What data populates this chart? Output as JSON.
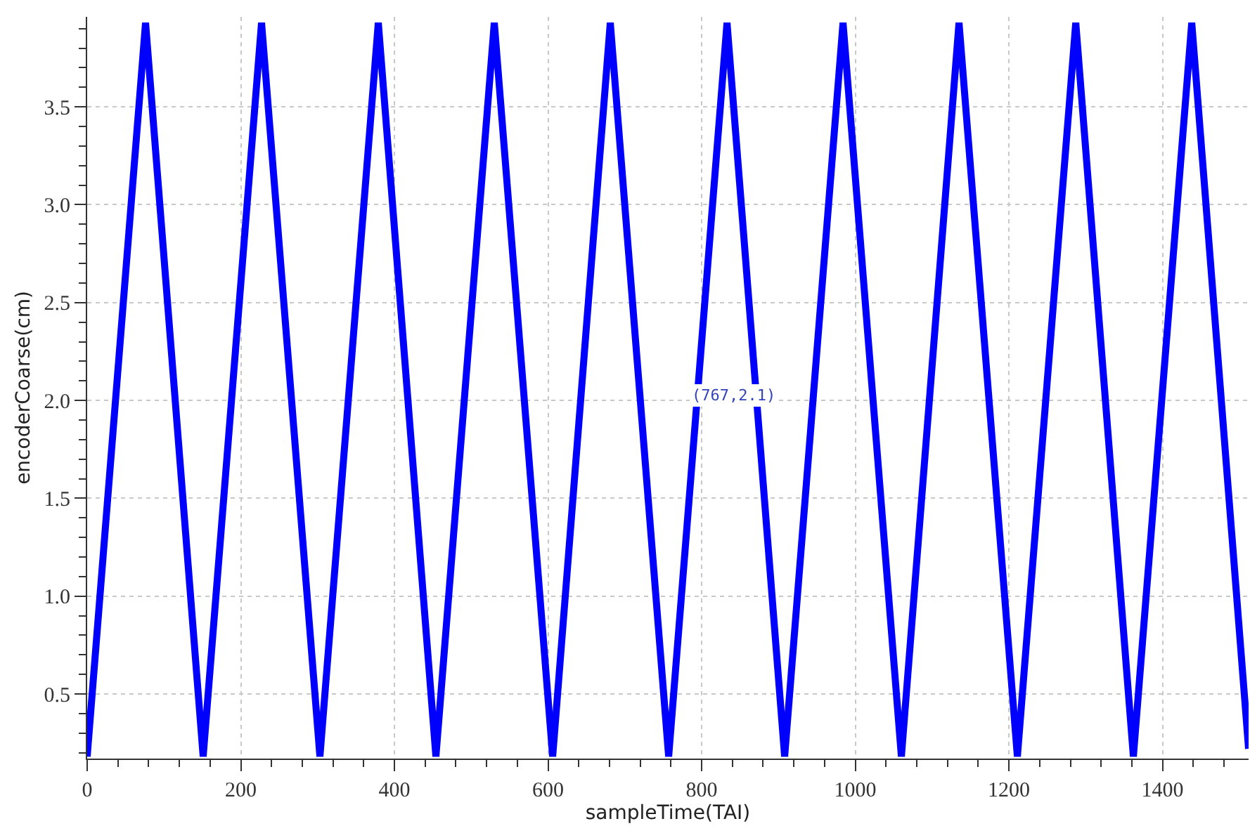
{
  "chart_data": {
    "type": "line",
    "xlabel": "sampleTime(TAI)",
    "ylabel": "encoderCoarse(cm)",
    "x": [
      0,
      76,
      151,
      227,
      303,
      379,
      454,
      530,
      606,
      681,
      757,
      833,
      908,
      984,
      1060,
      1135,
      1211,
      1287,
      1362,
      1438,
      1512
    ],
    "series": [
      {
        "color": "#0000ff",
        "values": [
          0.18,
          3.93,
          0.18,
          3.93,
          0.18,
          3.93,
          0.18,
          3.93,
          0.18,
          3.93,
          0.18,
          3.93,
          0.18,
          3.93,
          0.18,
          3.93,
          0.18,
          3.93,
          0.18,
          3.93,
          0.22
        ]
      }
    ],
    "xlim": [
      0,
      1512
    ],
    "xticks": [
      0,
      200,
      400,
      600,
      800,
      1000,
      1200,
      1400
    ],
    "ylim": [
      0.17,
      3.96
    ],
    "yticks": [
      0.5,
      {
        "value": 1,
        "label": "1.0"
      },
      1.5,
      {
        "value": 2,
        "label": "2.0"
      },
      2.5,
      {
        "value": 3,
        "label": "3.0"
      },
      3.5
    ],
    "grid": true,
    "marker": "none",
    "line_style": "solid",
    "annotations": [
      "(767,2.1)"
    ]
  }
}
